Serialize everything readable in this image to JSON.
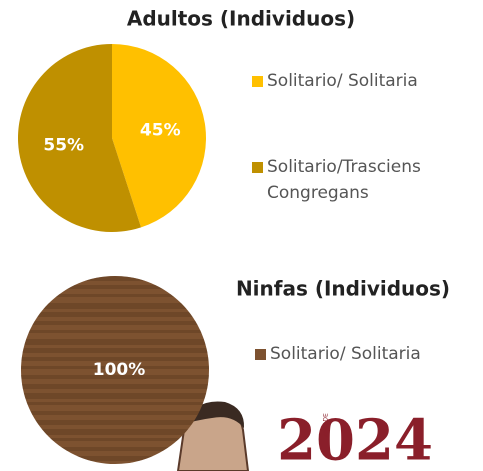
{
  "chart_data": [
    {
      "type": "pie",
      "title": "Adultos (Individuos)",
      "categories": [
        "Solitario/ Solitaria",
        "Solitario/Trasciens Congregans"
      ],
      "values": [
        45,
        55
      ],
      "value_labels": [
        "45%",
        "55%"
      ],
      "colors": [
        "#FFC000",
        "#BF9000"
      ]
    },
    {
      "type": "pie",
      "title": "Ninfas (Individuos)",
      "categories": [
        "Solitario/ Solitaria"
      ],
      "values": [
        100
      ],
      "value_labels": [
        "100%"
      ],
      "colors": [
        "#7d5230"
      ]
    }
  ],
  "footer": {
    "year": "2024",
    "tag": "AÑO DE"
  }
}
